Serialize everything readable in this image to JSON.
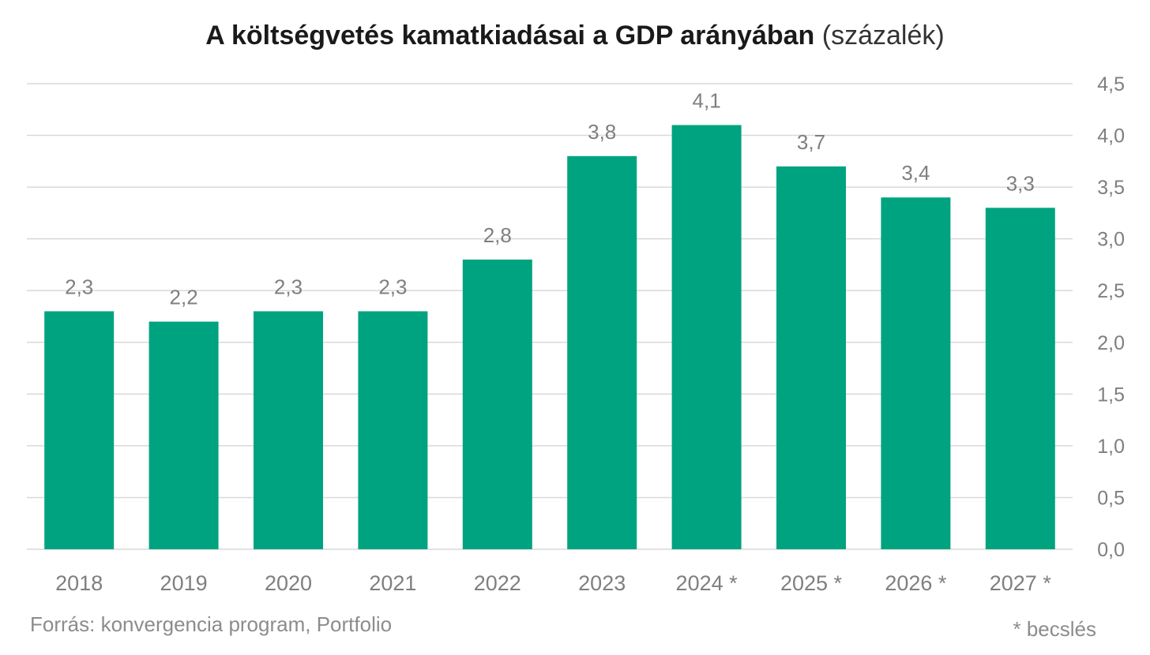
{
  "chart_data": {
    "type": "bar",
    "title_bold": "A költségvetés kamatkiadásai a GDP arányában",
    "title_unit": "(százalék)",
    "categories": [
      "2018",
      "2019",
      "2020",
      "2021",
      "2022",
      "2023",
      "2024 *",
      "2025 *",
      "2026 *",
      "2027 *"
    ],
    "values": [
      2.3,
      2.2,
      2.3,
      2.3,
      2.8,
      3.8,
      4.1,
      3.7,
      3.4,
      3.3
    ],
    "value_labels": [
      "2,3",
      "2,2",
      "2,3",
      "2,3",
      "2,8",
      "3,8",
      "4,1",
      "3,7",
      "3,4",
      "3,3"
    ],
    "ylim": [
      0,
      4.5
    ],
    "y_ticks": [
      0,
      0.5,
      1.0,
      1.5,
      2.0,
      2.5,
      3.0,
      3.5,
      4.0,
      4.5
    ],
    "y_tick_labels": [
      "0,0",
      "0,5",
      "1,0",
      "1,5",
      "2,0",
      "2,5",
      "3,0",
      "3,5",
      "4,0",
      "4,5"
    ],
    "y_axis_side": "right",
    "grid": true,
    "bar_color": "#00a37f",
    "grid_color": "#d9d9d9",
    "label_color": "#7f7f7f"
  },
  "footer": {
    "source": "Forrás: konvergencia program, Portfolio",
    "note": "* becslés"
  }
}
